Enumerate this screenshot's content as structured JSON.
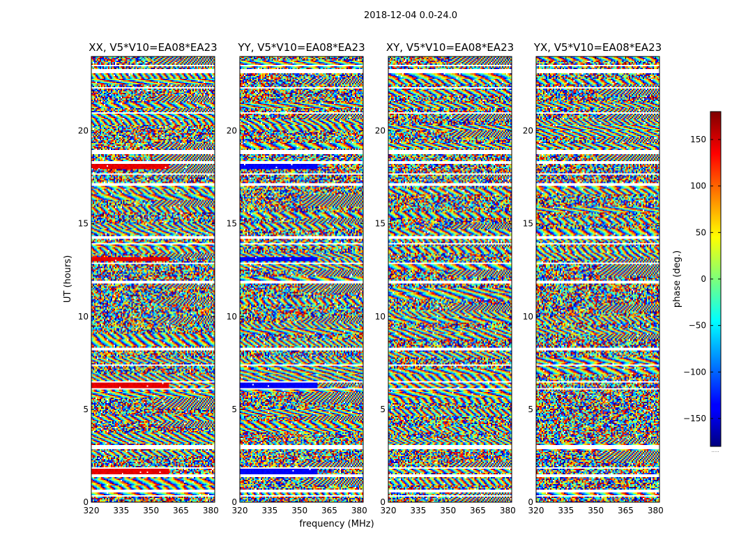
{
  "chart_data": {
    "type": "heatmap",
    "title": "2018-12-04 0.0-24.0",
    "xlabel": "frequency (MHz)",
    "ylabel": "UT (hours)",
    "xlim": [
      320,
      382
    ],
    "ylim": [
      0,
      24
    ],
    "x_ticks": [
      320,
      335,
      350,
      365,
      380
    ],
    "y_ticks": [
      0,
      5,
      10,
      15,
      20
    ],
    "colormap": "jet",
    "colorbar": {
      "label": "phase (deg.)",
      "range": [
        -180,
        180
      ],
      "ticks": [
        -150,
        -100,
        -50,
        0,
        50,
        100,
        150
      ],
      "tick_labels": [
        "−150",
        "−100",
        "−50",
        "0",
        "50",
        "100",
        "150"
      ],
      "note": "....."
    },
    "panels": [
      {
        "title": "XX, V5*V10=EA08*EA23",
        "correlation": "XX"
      },
      {
        "title": "YY, V5*V10=EA08*EA23",
        "correlation": "YY"
      },
      {
        "title": "XY, V5*V10=EA08*EA23",
        "correlation": "XY"
      },
      {
        "title": "YX, V5*V10=EA08*EA23",
        "correlation": "YX"
      }
    ],
    "flagged_time_ranges_hours": [
      [
        0.28,
        0.35
      ],
      [
        0.55,
        0.7
      ],
      [
        1.38,
        1.47
      ],
      [
        1.82,
        1.9
      ],
      [
        2.85,
        3.05
      ],
      [
        3.5,
        3.55
      ],
      [
        4.4,
        4.45
      ],
      [
        5.45,
        5.5
      ],
      [
        6.05,
        6.15
      ],
      [
        6.45,
        6.55
      ],
      [
        7.35,
        7.45
      ],
      [
        8.15,
        8.35
      ],
      [
        11.8,
        11.9
      ],
      [
        12.8,
        12.9
      ],
      [
        13.85,
        13.95
      ],
      [
        14.15,
        14.3
      ],
      [
        16.4,
        16.45
      ],
      [
        17.05,
        17.15
      ],
      [
        17.6,
        17.7
      ],
      [
        18.25,
        18.35
      ],
      [
        18.75,
        18.95
      ],
      [
        19.25,
        19.3
      ],
      [
        20.95,
        21.0
      ],
      [
        22.25,
        22.35
      ],
      [
        23.1,
        23.3
      ],
      [
        23.45,
        23.55
      ]
    ]
  }
}
